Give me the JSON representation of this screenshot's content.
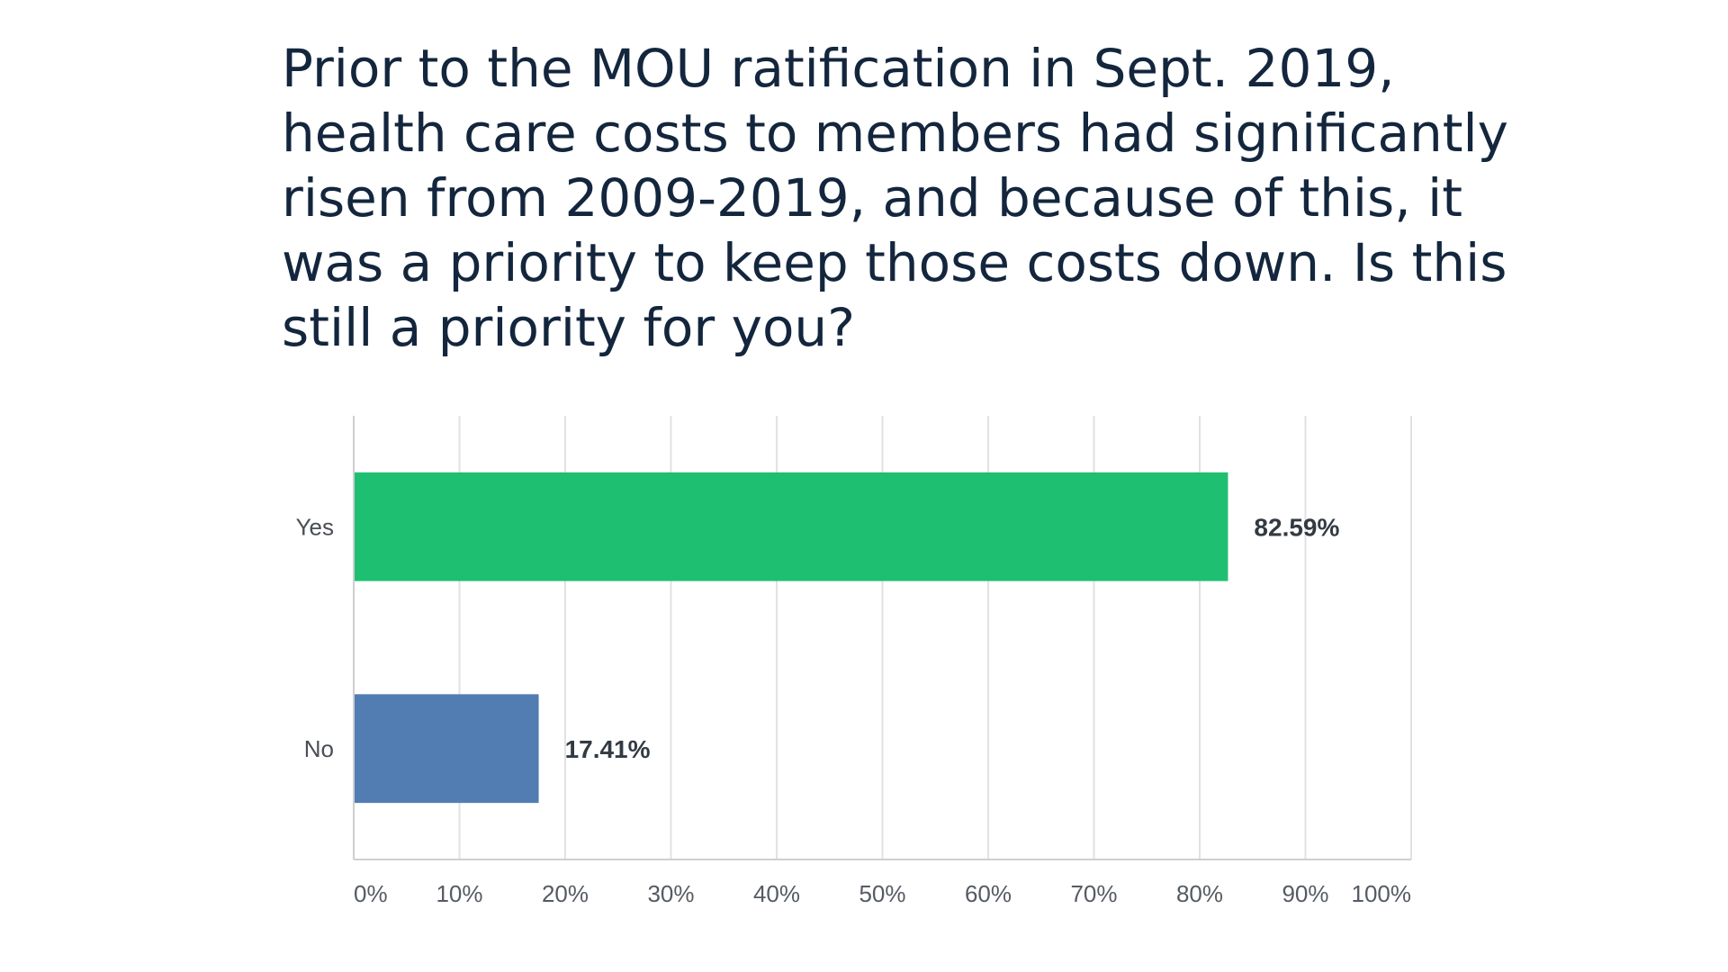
{
  "chart_data": {
    "type": "bar",
    "orientation": "horizontal",
    "title": "Prior to the MOU ratification in Sept. 2019, health care costs to members had significantly risen from 2009-2019, and because of this, it was a priority to keep those costs down. Is this still a priority for you?",
    "categories": [
      "Yes",
      "No"
    ],
    "values": [
      82.59,
      17.41
    ],
    "value_labels": [
      "82.59%",
      "17.41%"
    ],
    "colors": [
      "#1fbf72",
      "#517db3"
    ],
    "xlim": [
      0,
      100
    ],
    "ticks": [
      0,
      10,
      20,
      30,
      40,
      50,
      60,
      70,
      80,
      90,
      100
    ],
    "tick_labels": [
      "0%",
      "10%",
      "20%",
      "30%",
      "40%",
      "50%",
      "60%",
      "70%",
      "80%",
      "90%",
      "100%"
    ],
    "grid": true,
    "gridline_color": "#e2e2e2",
    "axis_color": "#cfcfcf"
  }
}
